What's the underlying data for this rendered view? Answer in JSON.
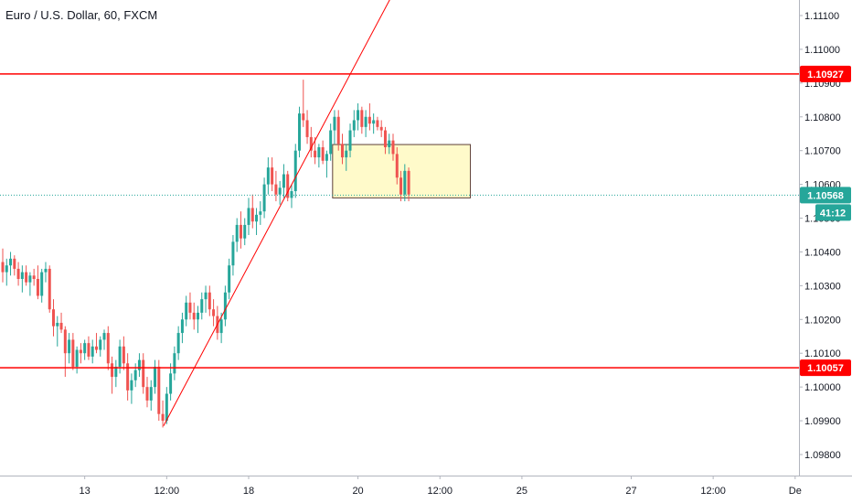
{
  "chart_data": {
    "type": "candlestick",
    "title": "Euro / U.S. Dollar, 60, FXCM",
    "symbol": "Euro / U.S. Dollar",
    "interval": "60",
    "source": "FXCM",
    "colors": {
      "up": "#26a69a",
      "down": "#ef5350",
      "level_line": "#ff0000",
      "current_price": "#26a69a",
      "zone_fill": "#fff9c4",
      "axis_text": "#131722",
      "axis_border": "#b2b5be"
    },
    "y_axis": {
      "position": "right",
      "range": [
        1.0972,
        1.1118
      ],
      "ticks": [
        "1.09800",
        "1.09900",
        "1.10000",
        "1.10100",
        "1.10200",
        "1.10300",
        "1.10400",
        "1.10500",
        "1.10600",
        "1.10700",
        "1.10800",
        "1.10900",
        "1.11000",
        "1.11100"
      ]
    },
    "x_axis": {
      "ticks": [
        {
          "label": "13",
          "index": 21
        },
        {
          "label": "12:00",
          "index": 42
        },
        {
          "label": "18",
          "index": 63
        },
        {
          "label": "20",
          "index": 91
        },
        {
          "label": "12:00",
          "index": 112
        },
        {
          "label": "25",
          "index": 133
        },
        {
          "label": "27",
          "index": 161
        },
        {
          "label": "12:00",
          "index": 182
        },
        {
          "label": "De",
          "index": 203
        }
      ],
      "total_bars": 205
    },
    "horizontal_levels": [
      {
        "price": 1.10927,
        "label": "1.10927"
      },
      {
        "price": 1.10057,
        "label": "1.10057"
      }
    ],
    "current_price": {
      "price": 1.10568,
      "label": "1.10568",
      "countdown": "41:12"
    },
    "trendline": {
      "start": {
        "index": 41.2,
        "price": 1.09885
      },
      "end": {
        "index": 102.5,
        "price": 1.1122
      }
    },
    "zone": {
      "start_index": 84.5,
      "end_index": 119.8,
      "top": 1.10718,
      "bottom": 1.1056
    },
    "candles": [
      {
        "o": 1.1037,
        "h": 1.1041,
        "l": 1.1031,
        "c": 1.1034
      },
      {
        "o": 1.1034,
        "h": 1.1038,
        "l": 1.103,
        "c": 1.1036
      },
      {
        "o": 1.1036,
        "h": 1.104,
        "l": 1.1033,
        "c": 1.1038
      },
      {
        "o": 1.1038,
        "h": 1.1039,
        "l": 1.1033,
        "c": 1.1035
      },
      {
        "o": 1.1035,
        "h": 1.1037,
        "l": 1.103,
        "c": 1.1032
      },
      {
        "o": 1.1032,
        "h": 1.1036,
        "l": 1.1028,
        "c": 1.1034
      },
      {
        "o": 1.1034,
        "h": 1.1036,
        "l": 1.103,
        "c": 1.1031
      },
      {
        "o": 1.1031,
        "h": 1.1034,
        "l": 1.1027,
        "c": 1.1033
      },
      {
        "o": 1.1033,
        "h": 1.1035,
        "l": 1.103,
        "c": 1.1032
      },
      {
        "o": 1.1032,
        "h": 1.1036,
        "l": 1.1026,
        "c": 1.1027
      },
      {
        "o": 1.1027,
        "h": 1.1035,
        "l": 1.1025,
        "c": 1.1034
      },
      {
        "o": 1.1034,
        "h": 1.1037,
        "l": 1.1031,
        "c": 1.1035
      },
      {
        "o": 1.1035,
        "h": 1.1036,
        "l": 1.1022,
        "c": 1.1023
      },
      {
        "o": 1.1023,
        "h": 1.1026,
        "l": 1.1015,
        "c": 1.1018
      },
      {
        "o": 1.1018,
        "h": 1.1021,
        "l": 1.1012,
        "c": 1.1019
      },
      {
        "o": 1.1019,
        "h": 1.1022,
        "l": 1.1016,
        "c": 1.1017
      },
      {
        "o": 1.1017,
        "h": 1.1018,
        "l": 1.1003,
        "c": 1.101
      },
      {
        "o": 1.101,
        "h": 1.1016,
        "l": 1.1007,
        "c": 1.1014
      },
      {
        "o": 1.1014,
        "h": 1.1016,
        "l": 1.1005,
        "c": 1.1006
      },
      {
        "o": 1.1006,
        "h": 1.1012,
        "l": 1.1004,
        "c": 1.1011
      },
      {
        "o": 1.1011,
        "h": 1.1013,
        "l": 1.1007,
        "c": 1.101
      },
      {
        "o": 1.101,
        "h": 1.1014,
        "l": 1.1008,
        "c": 1.1013
      },
      {
        "o": 1.1013,
        "h": 1.1015,
        "l": 1.1008,
        "c": 1.1009
      },
      {
        "o": 1.1009,
        "h": 1.1014,
        "l": 1.1007,
        "c": 1.1012
      },
      {
        "o": 1.1012,
        "h": 1.1016,
        "l": 1.101,
        "c": 1.1011
      },
      {
        "o": 1.1011,
        "h": 1.1015,
        "l": 1.1009,
        "c": 1.1014
      },
      {
        "o": 1.1014,
        "h": 1.1017,
        "l": 1.1011,
        "c": 1.1016
      },
      {
        "o": 1.1016,
        "h": 1.1018,
        "l": 1.1005,
        "c": 1.1007
      },
      {
        "o": 1.1007,
        "h": 1.1009,
        "l": 1.0998,
        "c": 1.1003
      },
      {
        "o": 1.1003,
        "h": 1.1008,
        "l": 1.1,
        "c": 1.1006
      },
      {
        "o": 1.1006,
        "h": 1.1014,
        "l": 1.1004,
        "c": 1.1012
      },
      {
        "o": 1.1012,
        "h": 1.1015,
        "l": 1.1005,
        "c": 1.1007
      },
      {
        "o": 1.1007,
        "h": 1.101,
        "l": 1.0996,
        "c": 1.0999
      },
      {
        "o": 1.0999,
        "h": 1.1004,
        "l": 1.0995,
        "c": 1.1002
      },
      {
        "o": 1.1002,
        "h": 1.1007,
        "l": 1.1,
        "c": 1.1005
      },
      {
        "o": 1.1005,
        "h": 1.101,
        "l": 1.1003,
        "c": 1.1008
      },
      {
        "o": 1.1008,
        "h": 1.101,
        "l": 1.0998,
        "c": 1.1
      },
      {
        "o": 1.1,
        "h": 1.1003,
        "l": 1.0994,
        "c": 1.0996
      },
      {
        "o": 1.0996,
        "h": 1.1002,
        "l": 1.0993,
        "c": 1.1
      },
      {
        "o": 1.1,
        "h": 1.1008,
        "l": 1.0998,
        "c": 1.1006
      },
      {
        "o": 1.1006,
        "h": 1.1008,
        "l": 1.099,
        "c": 1.0992
      },
      {
        "o": 1.0992,
        "h": 1.0996,
        "l": 1.0988,
        "c": 1.099
      },
      {
        "o": 1.099,
        "h": 1.1,
        "l": 1.0989,
        "c": 1.0998
      },
      {
        "o": 1.0998,
        "h": 1.1007,
        "l": 1.0996,
        "c": 1.1004
      },
      {
        "o": 1.1004,
        "h": 1.1012,
        "l": 1.1002,
        "c": 1.101
      },
      {
        "o": 1.101,
        "h": 1.1018,
        "l": 1.1008,
        "c": 1.1016
      },
      {
        "o": 1.1016,
        "h": 1.1022,
        "l": 1.1013,
        "c": 1.102
      },
      {
        "o": 1.102,
        "h": 1.1027,
        "l": 1.1018,
        "c": 1.1025
      },
      {
        "o": 1.1025,
        "h": 1.1028,
        "l": 1.102,
        "c": 1.1022
      },
      {
        "o": 1.1022,
        "h": 1.1025,
        "l": 1.1017,
        "c": 1.102
      },
      {
        "o": 1.102,
        "h": 1.1024,
        "l": 1.1016,
        "c": 1.1022
      },
      {
        "o": 1.1022,
        "h": 1.1028,
        "l": 1.102,
        "c": 1.1026
      },
      {
        "o": 1.1026,
        "h": 1.103,
        "l": 1.1022,
        "c": 1.1028
      },
      {
        "o": 1.1028,
        "h": 1.103,
        "l": 1.1021,
        "c": 1.1023
      },
      {
        "o": 1.1023,
        "h": 1.1026,
        "l": 1.1018,
        "c": 1.1021
      },
      {
        "o": 1.1021,
        "h": 1.1024,
        "l": 1.1014,
        "c": 1.1016
      },
      {
        "o": 1.1016,
        "h": 1.1022,
        "l": 1.1013,
        "c": 1.102
      },
      {
        "o": 1.102,
        "h": 1.103,
        "l": 1.1018,
        "c": 1.1028
      },
      {
        "o": 1.1028,
        "h": 1.1038,
        "l": 1.1026,
        "c": 1.1036
      },
      {
        "o": 1.1036,
        "h": 1.1045,
        "l": 1.1033,
        "c": 1.1043
      },
      {
        "o": 1.1043,
        "h": 1.105,
        "l": 1.104,
        "c": 1.1048
      },
      {
        "o": 1.1048,
        "h": 1.1052,
        "l": 1.1041,
        "c": 1.1044
      },
      {
        "o": 1.1044,
        "h": 1.105,
        "l": 1.1042,
        "c": 1.1048
      },
      {
        "o": 1.1048,
        "h": 1.1056,
        "l": 1.1045,
        "c": 1.1053
      },
      {
        "o": 1.1053,
        "h": 1.1057,
        "l": 1.1047,
        "c": 1.1049
      },
      {
        "o": 1.1049,
        "h": 1.1053,
        "l": 1.1045,
        "c": 1.1051
      },
      {
        "o": 1.1051,
        "h": 1.1055,
        "l": 1.1048,
        "c": 1.1052
      },
      {
        "o": 1.1052,
        "h": 1.1062,
        "l": 1.105,
        "c": 1.106
      },
      {
        "o": 1.106,
        "h": 1.1068,
        "l": 1.1057,
        "c": 1.1065
      },
      {
        "o": 1.1065,
        "h": 1.1068,
        "l": 1.1058,
        "c": 1.106
      },
      {
        "o": 1.106,
        "h": 1.1064,
        "l": 1.1055,
        "c": 1.1057
      },
      {
        "o": 1.1057,
        "h": 1.1061,
        "l": 1.1054,
        "c": 1.1059
      },
      {
        "o": 1.1059,
        "h": 1.1066,
        "l": 1.1056,
        "c": 1.1063
      },
      {
        "o": 1.1063,
        "h": 1.1064,
        "l": 1.1055,
        "c": 1.1056
      },
      {
        "o": 1.1056,
        "h": 1.106,
        "l": 1.1053,
        "c": 1.1058
      },
      {
        "o": 1.1058,
        "h": 1.1072,
        "l": 1.1056,
        "c": 1.107
      },
      {
        "o": 1.107,
        "h": 1.1083,
        "l": 1.1068,
        "c": 1.1081
      },
      {
        "o": 1.1081,
        "h": 1.1091,
        "l": 1.1077,
        "c": 1.1079
      },
      {
        "o": 1.1079,
        "h": 1.1082,
        "l": 1.1072,
        "c": 1.1074
      },
      {
        "o": 1.1074,
        "h": 1.1077,
        "l": 1.1068,
        "c": 1.107
      },
      {
        "o": 1.107,
        "h": 1.1074,
        "l": 1.1066,
        "c": 1.1068
      },
      {
        "o": 1.1068,
        "h": 1.1072,
        "l": 1.1065,
        "c": 1.1071
      },
      {
        "o": 1.1071,
        "h": 1.1073,
        "l": 1.1066,
        "c": 1.1067
      },
      {
        "o": 1.1067,
        "h": 1.107,
        "l": 1.1062,
        "c": 1.1069
      },
      {
        "o": 1.1069,
        "h": 1.1078,
        "l": 1.1067,
        "c": 1.1076
      },
      {
        "o": 1.1076,
        "h": 1.1082,
        "l": 1.1072,
        "c": 1.108
      },
      {
        "o": 1.108,
        "h": 1.1082,
        "l": 1.107,
        "c": 1.1072
      },
      {
        "o": 1.1072,
        "h": 1.1075,
        "l": 1.1066,
        "c": 1.1068
      },
      {
        "o": 1.1068,
        "h": 1.1072,
        "l": 1.1064,
        "c": 1.107
      },
      {
        "o": 1.107,
        "h": 1.1078,
        "l": 1.1068,
        "c": 1.1076
      },
      {
        "o": 1.1076,
        "h": 1.1082,
        "l": 1.1074,
        "c": 1.1079
      },
      {
        "o": 1.1079,
        "h": 1.1084,
        "l": 1.1076,
        "c": 1.1082
      },
      {
        "o": 1.1082,
        "h": 1.1083,
        "l": 1.1075,
        "c": 1.1077
      },
      {
        "o": 1.1077,
        "h": 1.1082,
        "l": 1.1074,
        "c": 1.108
      },
      {
        "o": 1.108,
        "h": 1.1084,
        "l": 1.1076,
        "c": 1.1078
      },
      {
        "o": 1.1078,
        "h": 1.1081,
        "l": 1.1075,
        "c": 1.1079
      },
      {
        "o": 1.1079,
        "h": 1.108,
        "l": 1.1076,
        "c": 1.1077
      },
      {
        "o": 1.1077,
        "h": 1.1079,
        "l": 1.1074,
        "c": 1.1076
      },
      {
        "o": 1.1076,
        "h": 1.1077,
        "l": 1.1069,
        "c": 1.1071
      },
      {
        "o": 1.1071,
        "h": 1.1075,
        "l": 1.1069,
        "c": 1.1073
      },
      {
        "o": 1.1073,
        "h": 1.1075,
        "l": 1.1067,
        "c": 1.1069
      },
      {
        "o": 1.1069,
        "h": 1.1071,
        "l": 1.106,
        "c": 1.1062
      },
      {
        "o": 1.1062,
        "h": 1.1064,
        "l": 1.1055,
        "c": 1.1057
      },
      {
        "o": 1.1057,
        "h": 1.1066,
        "l": 1.1055,
        "c": 1.1064
      },
      {
        "o": 1.1064,
        "h": 1.1065,
        "l": 1.1055,
        "c": 1.1057
      }
    ]
  }
}
